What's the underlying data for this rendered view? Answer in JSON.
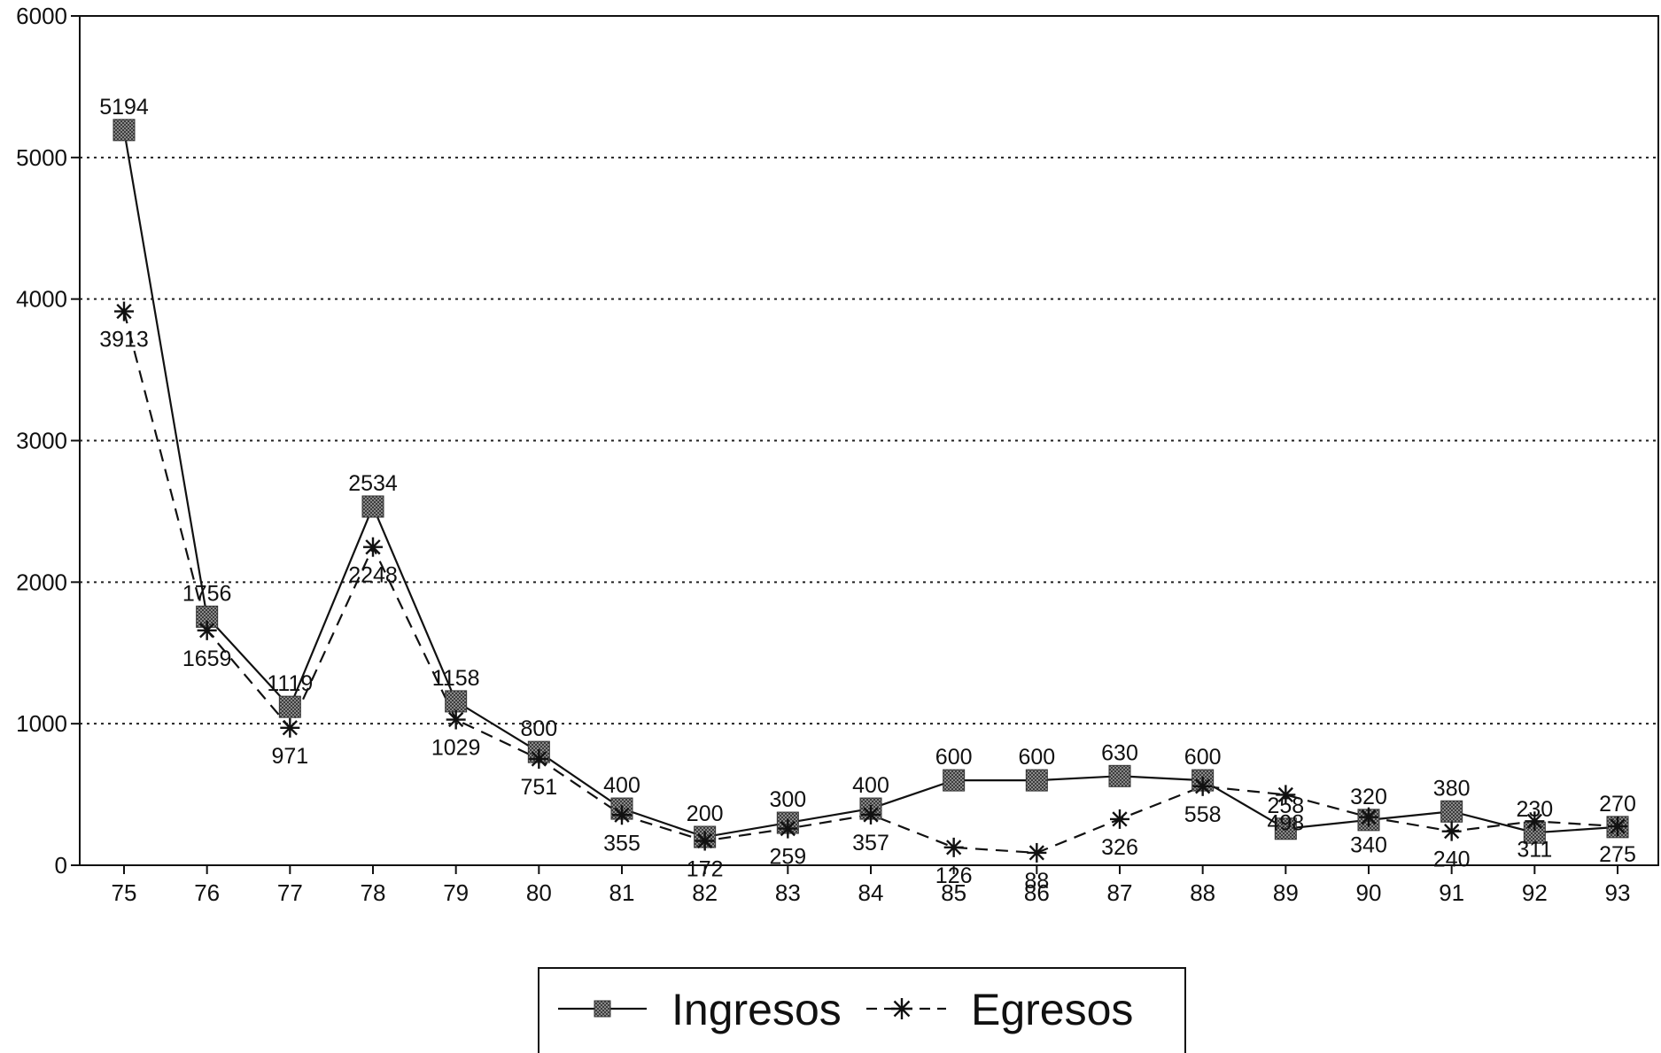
{
  "chart_data": {
    "type": "line",
    "title": "",
    "xlabel": "",
    "ylabel": "",
    "categories": [
      "75",
      "76",
      "77",
      "78",
      "79",
      "80",
      "81",
      "82",
      "83",
      "84",
      "85",
      "86",
      "87",
      "88",
      "89",
      "90",
      "91",
      "92",
      "93"
    ],
    "ylim": [
      0,
      6000
    ],
    "yticks": [
      "0",
      "1000",
      "2000",
      "3000",
      "4000",
      "5000",
      "6000"
    ],
    "grid": "horizontal dotted",
    "legend_position": "bottom-center",
    "series": [
      {
        "name": "Ingresos",
        "line_style": "solid",
        "marker": "square",
        "color": "#666666",
        "values": [
          5194,
          1756,
          1119,
          2534,
          1158,
          800,
          400,
          200,
          300,
          400,
          600,
          600,
          630,
          600,
          258,
          320,
          380,
          230,
          270
        ]
      },
      {
        "name": "Egresos",
        "line_style": "dashed",
        "marker": "asterisk",
        "color": "#111111",
        "values": [
          3913,
          1659,
          971,
          2248,
          1029,
          751,
          355,
          172,
          259,
          357,
          126,
          88,
          326,
          558,
          498,
          340,
          240,
          311,
          275
        ]
      }
    ],
    "labels": {
      "Ingresos": [
        "5194",
        "1756",
        "1119",
        "2534",
        "1158",
        "800",
        "400",
        "200",
        "300",
        "400",
        "600",
        "600",
        "630",
        "600",
        "258",
        "320",
        "380",
        "230",
        "270"
      ],
      "Egresos": [
        "3913",
        "1659",
        "971",
        "2248",
        "1029",
        "751",
        "355",
        "172",
        "259",
        "357",
        "126",
        "88",
        "326",
        "558",
        "498",
        "340",
        "240",
        "311",
        "275"
      ]
    }
  }
}
